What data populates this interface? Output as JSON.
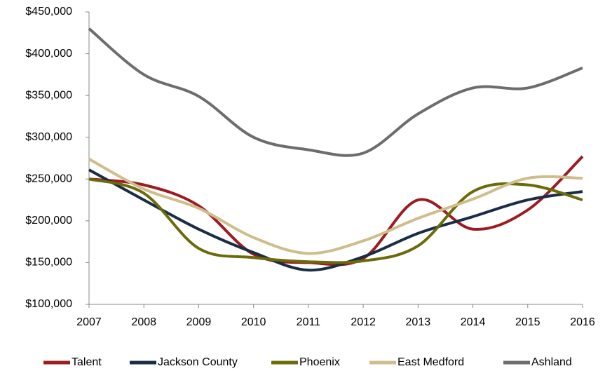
{
  "chart_data": {
    "type": "line",
    "categories": [
      "2007",
      "2008",
      "2009",
      "2010",
      "2011",
      "2012",
      "2013",
      "2014",
      "2015",
      "2016"
    ],
    "series": [
      {
        "name": "Talent",
        "color": "#9b1c22",
        "values": [
          250000,
          243000,
          218000,
          160000,
          150000,
          155000,
          225000,
          190000,
          213000,
          277000
        ]
      },
      {
        "name": "Jackson County",
        "color": "#1b2d45",
        "values": [
          261000,
          225000,
          190000,
          162000,
          141000,
          157000,
          185000,
          205000,
          225000,
          235000
        ]
      },
      {
        "name": "Phoenix",
        "color": "#6b6b0a",
        "values": [
          250000,
          233000,
          167000,
          156000,
          151000,
          152000,
          170000,
          235000,
          243000,
          225000
        ]
      },
      {
        "name": "East Medford",
        "color": "#cfbd8c",
        "values": [
          274000,
          238000,
          215000,
          180000,
          161000,
          176000,
          203000,
          226000,
          251000,
          251000
        ]
      },
      {
        "name": "Ashland",
        "color": "#6d6d6d",
        "values": [
          430000,
          375000,
          349000,
          300000,
          285000,
          281000,
          328000,
          359000,
          359000,
          383000
        ]
      }
    ],
    "ylim": [
      100000,
      450000
    ],
    "yticks": [
      {
        "value": 100000,
        "label": "$100,000"
      },
      {
        "value": 150000,
        "label": "$150,000"
      },
      {
        "value": 200000,
        "label": "$200,000"
      },
      {
        "value": 250000,
        "label": "$250,000"
      },
      {
        "value": 300000,
        "label": "$300,000"
      },
      {
        "value": 350000,
        "label": "$350,000"
      },
      {
        "value": 400000,
        "label": "$400,000"
      },
      {
        "value": 450000,
        "label": "$450,000"
      }
    ],
    "grid": false,
    "legend": "bottom"
  }
}
